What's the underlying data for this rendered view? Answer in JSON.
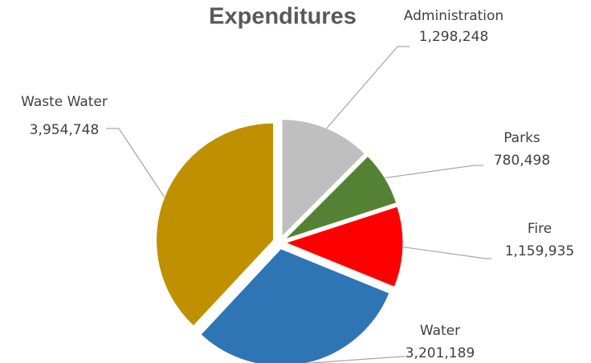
{
  "chart_data": {
    "type": "pie",
    "title": "Expenditures",
    "categories": [
      "Administration",
      "Parks",
      "Fire",
      "Water",
      "Waste Water"
    ],
    "values": [
      1298248,
      780498,
      1159935,
      3201189,
      3954748
    ],
    "value_labels": [
      "1,298,248",
      "780,498",
      "1,159,935",
      "3,201,189",
      "3,954,748"
    ],
    "colors": [
      "#bfbfbf",
      "#548235",
      "#ff0000",
      "#2e75b6",
      "#bf9000"
    ]
  }
}
